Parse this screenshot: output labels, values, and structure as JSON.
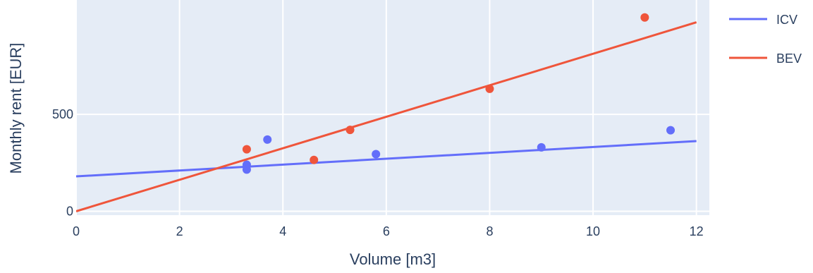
{
  "chart_data": {
    "type": "scatter",
    "xlabel": "Volume [m3]",
    "ylabel": "Monthly rent [EUR]",
    "xlim": [
      0,
      12.25
    ],
    "ylim": [
      -20,
      1090
    ],
    "xticks": [
      0,
      2,
      4,
      6,
      8,
      10,
      12
    ],
    "yticks": [
      0,
      500
    ],
    "grid": true,
    "legend_position": "right",
    "background": "#E5ECF6",
    "series": [
      {
        "name": "ICV",
        "color": "#636EFA",
        "points": [
          {
            "x": 3.3,
            "y": 240
          },
          {
            "x": 3.3,
            "y": 215
          },
          {
            "x": 3.7,
            "y": 370
          },
          {
            "x": 5.8,
            "y": 295
          },
          {
            "x": 9.0,
            "y": 330
          },
          {
            "x": 11.5,
            "y": 418
          }
        ],
        "trendline": {
          "x": [
            0,
            12
          ],
          "y": [
            180,
            362
          ]
        }
      },
      {
        "name": "BEV",
        "color": "#EF553B",
        "points": [
          {
            "x": 3.3,
            "y": 320
          },
          {
            "x": 4.6,
            "y": 265
          },
          {
            "x": 5.3,
            "y": 420
          },
          {
            "x": 8.0,
            "y": 632
          },
          {
            "x": 11.0,
            "y": 1000
          }
        ],
        "trendline": {
          "x": [
            0,
            12
          ],
          "y": [
            0,
            975
          ]
        }
      }
    ]
  }
}
